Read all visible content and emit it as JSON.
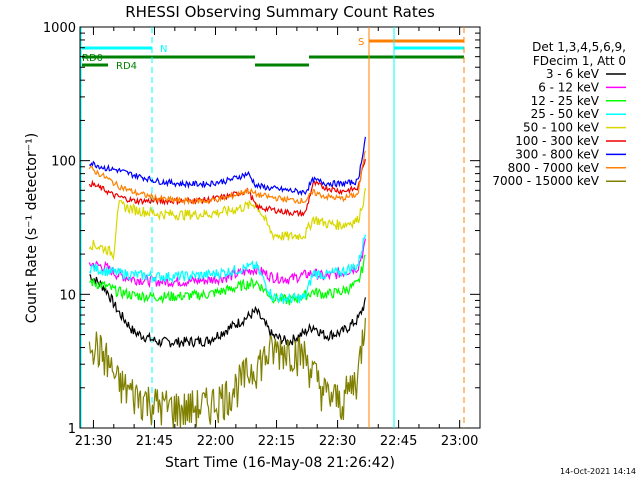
{
  "chart_data": {
    "type": "line",
    "title": "RHESSI Observing Summary Count Rates",
    "xlabel": "Start Time (16-May-08 21:26:42)",
    "ylabel": "Count Rate (s⁻¹ detector⁻¹)",
    "y_scale": "log",
    "ylim": [
      1,
      1000
    ],
    "xlim": [
      "21:26:42",
      "23:05:00"
    ],
    "x_ticks": [
      "21:30",
      "21:45",
      "22:00",
      "22:15",
      "22:30",
      "22:45",
      "23:00"
    ],
    "y_ticks": [
      "1",
      "10",
      "100",
      "1000"
    ],
    "grid": false,
    "legend_position": "top-right",
    "legend_header": [
      "Det 1,3,4,5,6,9,",
      "FDecim 1, Att 0"
    ],
    "series": [
      {
        "name": "3 - 6 keV",
        "color": "#000000",
        "x": [
          "21:29",
          "21:33",
          "21:36",
          "21:40",
          "21:46",
          "21:52",
          "21:58",
          "22:03",
          "22:08",
          "22:10",
          "22:14",
          "22:18",
          "22:22",
          "22:24",
          "22:27",
          "22:31",
          "22:35",
          "22:37"
        ],
        "values": [
          14,
          11,
          7.5,
          5.2,
          4.4,
          4.4,
          4.5,
          5.5,
          6.8,
          7.5,
          4.9,
          4.4,
          5.2,
          5.8,
          4.9,
          5.2,
          6.5,
          9
        ]
      },
      {
        "name": "6 - 12 keV",
        "color": "#ff00ff",
        "x": [
          "21:29",
          "21:33",
          "21:36",
          "21:40",
          "21:46",
          "21:52",
          "21:58",
          "22:03",
          "22:08",
          "22:10",
          "22:14",
          "22:18",
          "22:22",
          "22:24",
          "22:27",
          "22:31",
          "22:35",
          "22:37"
        ],
        "values": [
          17,
          16,
          14,
          13,
          12.5,
          12.5,
          12.8,
          13.5,
          15,
          15.5,
          13.5,
          13,
          14,
          14.5,
          13.5,
          14.5,
          16,
          25
        ]
      },
      {
        "name": "12 - 25 keV",
        "color": "#00ff00",
        "x": [
          "21:29",
          "21:33",
          "21:36",
          "21:40",
          "21:46",
          "21:52",
          "21:58",
          "22:03",
          "22:08",
          "22:10",
          "22:14",
          "22:18",
          "22:22",
          "22:24",
          "22:27",
          "22:31",
          "22:35",
          "22:37"
        ],
        "values": [
          12.5,
          11.5,
          10.5,
          9.8,
          9.6,
          9.7,
          10,
          10.8,
          12,
          12.3,
          9.5,
          9,
          9.8,
          10.5,
          10,
          10.5,
          12,
          20
        ]
      },
      {
        "name": "25 - 50 keV",
        "color": "#00ffff",
        "x": [
          "21:29",
          "21:33",
          "21:36",
          "21:40",
          "21:46",
          "21:52",
          "21:58",
          "22:03",
          "22:08",
          "22:10",
          "22:14",
          "22:18",
          "22:22",
          "22:24",
          "22:27",
          "22:31",
          "22:35",
          "22:37"
        ],
        "values": [
          16,
          15,
          14.5,
          14,
          13.6,
          13.7,
          14,
          14.8,
          16,
          16.3,
          9.6,
          9.2,
          9.5,
          14.5,
          14,
          14.8,
          16.5,
          30
        ]
      },
      {
        "name": "50 - 100 keV",
        "color": "#d8d800",
        "x": [
          "21:29",
          "21:33",
          "21:35",
          "21:36",
          "21:40",
          "21:46",
          "21:52",
          "21:58",
          "22:03",
          "22:08",
          "22:10",
          "22:14",
          "22:18",
          "22:22",
          "22:24",
          "22:27",
          "22:31",
          "22:35",
          "22:37"
        ],
        "values": [
          24,
          22,
          20,
          47,
          43,
          40,
          39.5,
          40,
          42,
          46,
          48,
          28,
          27,
          28,
          37,
          34,
          33,
          36,
          60
        ]
      },
      {
        "name": "100 - 300 keV",
        "color": "#ee0000",
        "x": [
          "21:29",
          "21:33",
          "21:35",
          "21:40",
          "21:46",
          "21:52",
          "21:58",
          "22:03",
          "22:08",
          "22:10",
          "22:14",
          "22:18",
          "22:22",
          "22:24",
          "22:27",
          "22:31",
          "22:35",
          "22:37"
        ],
        "values": [
          68,
          60,
          55,
          50,
          50,
          50,
          51,
          54,
          60,
          45,
          43,
          41,
          40,
          68,
          63,
          59,
          62,
          110
        ]
      },
      {
        "name": "300 - 800 keV",
        "color": "#0000ff",
        "x": [
          "21:29",
          "21:33",
          "21:36",
          "21:40",
          "21:46",
          "21:52",
          "21:58",
          "22:03",
          "22:08",
          "22:10",
          "22:14",
          "22:18",
          "22:22",
          "22:24",
          "22:27",
          "22:31",
          "22:35",
          "22:37"
        ],
        "values": [
          97,
          88,
          85,
          78,
          70,
          67,
          67,
          71,
          80,
          65,
          62,
          60,
          58,
          72,
          68,
          67,
          70,
          160
        ]
      },
      {
        "name": "800 - 7000 keV",
        "color": "#ff8000",
        "x": [
          "21:29",
          "21:33",
          "21:36",
          "21:40",
          "21:46",
          "21:52",
          "21:58",
          "22:03",
          "22:08",
          "22:10",
          "22:14",
          "22:18",
          "22:22",
          "22:24",
          "22:27",
          "22:31",
          "22:35",
          "22:37"
        ],
        "values": [
          88,
          75,
          65,
          58,
          52,
          50,
          50,
          53,
          60,
          56,
          53,
          51,
          50,
          58,
          54,
          52,
          56,
          130
        ]
      },
      {
        "name": "7000 - 15000 keV",
        "color": "#808000",
        "x": [
          "21:29",
          "21:31",
          "21:33",
          "21:36",
          "21:40",
          "21:46",
          "21:52",
          "21:58",
          "22:03",
          "22:08",
          "22:10",
          "22:14",
          "22:18",
          "22:22",
          "22:24",
          "22:27",
          "22:31",
          "22:35",
          "22:37"
        ],
        "values": [
          5,
          4,
          3.4,
          2.2,
          1.8,
          1.5,
          1.4,
          1.5,
          1.8,
          2.6,
          3,
          3.8,
          4,
          3.5,
          2.6,
          1.8,
          1.6,
          2.5,
          8
        ]
      }
    ],
    "state_bars": [
      {
        "label": "N",
        "color": "#00ffff"
      },
      {
        "label": "S",
        "color": "#ff8000"
      },
      {
        "label": "RD0",
        "color": "#008000"
      },
      {
        "label": "RD4",
        "color": "#008000"
      }
    ],
    "vertical_markers": [
      {
        "color": "#00ffff",
        "style": "solid"
      },
      {
        "color": "#00ffff",
        "style": "dashed"
      },
      {
        "color": "#ff8000",
        "style": "solid"
      },
      {
        "color": "#00ffff",
        "style": "solid"
      },
      {
        "color": "#ff8000",
        "style": "dashed"
      }
    ]
  },
  "footer": {
    "timestamp": "14-Oct-2021 14:14"
  }
}
